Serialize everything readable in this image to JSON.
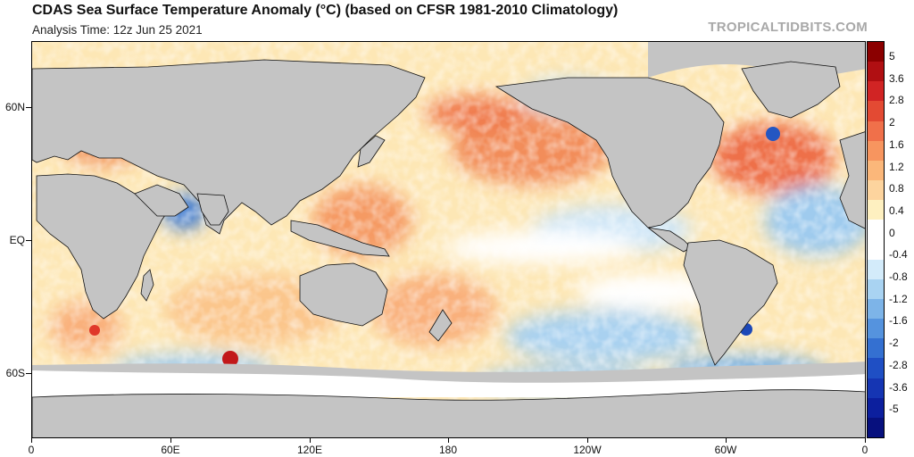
{
  "header": {
    "title": "CDAS Sea Surface Temperature Anomaly (°C) (based on CFSR 1981-2010 Climatology)",
    "analysis_time": "Analysis Time: 12z Jun 25 2021",
    "credit": "TROPICALTIDBITS.COM"
  },
  "map": {
    "lat_labels": [
      "60N",
      "EQ",
      "60S"
    ],
    "lon_labels": [
      "0",
      "60E",
      "120E",
      "180",
      "120W",
      "60W",
      "0"
    ],
    "colors": {
      "land": "#c4c4c4",
      "ice": "#ffffff",
      "coast": "#111111"
    }
  },
  "colorbar": {
    "labels": [
      "5",
      "3.6",
      "2.8",
      "2",
      "1.6",
      "1.2",
      "0.8",
      "0.4",
      "0",
      "-0.4",
      "-0.8",
      "-1.2",
      "-1.6",
      "-2",
      "-2.8",
      "-3.6",
      "-5"
    ],
    "colors": [
      "#8b0000",
      "#b00f12",
      "#d12424",
      "#e34a33",
      "#f0704a",
      "#f7955f",
      "#fbb77a",
      "#fdd49e",
      "#fef0c0",
      "#ffffff",
      "#ffffff",
      "#d3ebfa",
      "#a9d3f2",
      "#7db4e8",
      "#5593de",
      "#3470d1",
      "#1f4fc4",
      "#1535b3",
      "#0c1f9e",
      "#07107e"
    ]
  }
}
